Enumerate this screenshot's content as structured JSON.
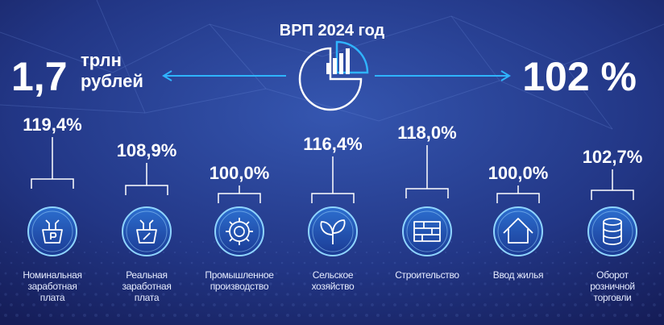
{
  "header": {
    "title": "ВРП 2024 год",
    "left_value": "1,7",
    "left_unit_lines": [
      "трлн",
      "рублей"
    ],
    "right_value": "102 %"
  },
  "items": [
    {
      "value": "119,4%",
      "label_lines": [
        "Номинальная",
        "заработная",
        "плата"
      ]
    },
    {
      "value": "108,9%",
      "label_lines": [
        "Реальная",
        "заработная",
        "плата"
      ]
    },
    {
      "value": "100,0%",
      "label_lines": [
        "Промышленное",
        "производство"
      ]
    },
    {
      "value": "116,4%",
      "label_lines": [
        "Сельское",
        "хозяйство"
      ]
    },
    {
      "value": "118,0%",
      "label_lines": [
        "Строительство"
      ]
    },
    {
      "value": "100,0%",
      "label_lines": [
        "Ввод жилья"
      ]
    },
    {
      "value": "102,7%",
      "label_lines": [
        "Оборот",
        "розничной",
        "торговли"
      ]
    }
  ]
}
